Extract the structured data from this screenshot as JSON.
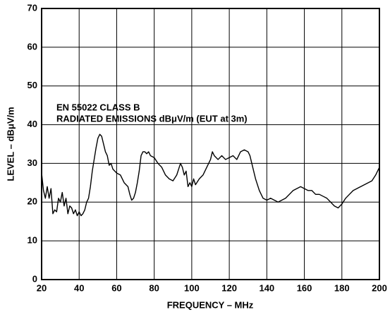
{
  "chart_data": {
    "type": "line",
    "x_label": "FREQUENCY – MHz",
    "y_label": "LEVEL – dBμV/m",
    "annotations": [
      "EN 55022 CLASS B",
      "RADIATED EMISSIONS dBμV/m (EUT at 3m)"
    ],
    "x": [
      20,
      21,
      22,
      23,
      24,
      25,
      26,
      27,
      28,
      29,
      30,
      31,
      32,
      33,
      34,
      35,
      36,
      37,
      38,
      39,
      40,
      41,
      42,
      43,
      44,
      45,
      46,
      47,
      48,
      49,
      50,
      51,
      52,
      53,
      54,
      55,
      56,
      57,
      58,
      59,
      60,
      62,
      64,
      66,
      67,
      68,
      69,
      70,
      71,
      72,
      73,
      74,
      75,
      76,
      77,
      78,
      80,
      82,
      84,
      86,
      88,
      90,
      92,
      93,
      94,
      95,
      96,
      97,
      98,
      99,
      100,
      101,
      102,
      104,
      106,
      108,
      110,
      111,
      112,
      114,
      116,
      118,
      120,
      122,
      124,
      126,
      128,
      130,
      131,
      132,
      134,
      136,
      138,
      140,
      142,
      144,
      146,
      148,
      150,
      152,
      154,
      156,
      158,
      160,
      162,
      164,
      166,
      168,
      170,
      172,
      174,
      176,
      178,
      180,
      182,
      184,
      186,
      188,
      190,
      192,
      194,
      196,
      198,
      199,
      200
    ],
    "values": [
      27.5,
      23,
      21,
      24,
      21,
      23.5,
      17,
      18,
      17.5,
      21,
      20,
      22.5,
      19,
      21,
      17,
      19,
      18.5,
      17,
      18,
      16.5,
      17.5,
      16.5,
      17,
      18,
      20,
      21,
      24,
      28,
      31,
      34,
      36.5,
      37.5,
      37,
      35,
      33,
      32,
      29.5,
      30,
      28.5,
      28,
      27.5,
      27,
      25,
      24,
      22,
      20.5,
      21,
      22.5,
      25,
      28,
      32,
      33,
      33,
      32.5,
      33,
      32,
      31.5,
      30,
      29,
      27,
      26,
      25.5,
      27,
      28.5,
      30,
      29,
      27,
      28,
      24,
      25,
      24,
      26,
      24.5,
      26,
      27,
      29,
      31,
      33,
      32,
      31,
      32,
      31,
      31.5,
      32,
      31,
      33,
      33.5,
      33,
      32,
      30,
      26,
      23,
      21,
      20.5,
      21,
      20.5,
      20,
      20.5,
      21,
      22,
      23,
      23.5,
      24,
      23.5,
      23,
      23,
      22,
      22,
      21.5,
      21,
      20,
      19,
      18.5,
      19.5,
      21,
      22,
      23,
      23.5,
      24,
      24.5,
      25,
      25.5,
      27,
      28,
      29
    ],
    "color": "#000000",
    "xlim": [
      20,
      200
    ],
    "xticks": [
      20,
      40,
      60,
      80,
      100,
      120,
      140,
      160,
      180,
      200
    ],
    "ylim": [
      0,
      70
    ],
    "yticks": [
      0,
      10,
      20,
      30,
      40,
      50,
      60,
      70
    ],
    "grid": true
  }
}
